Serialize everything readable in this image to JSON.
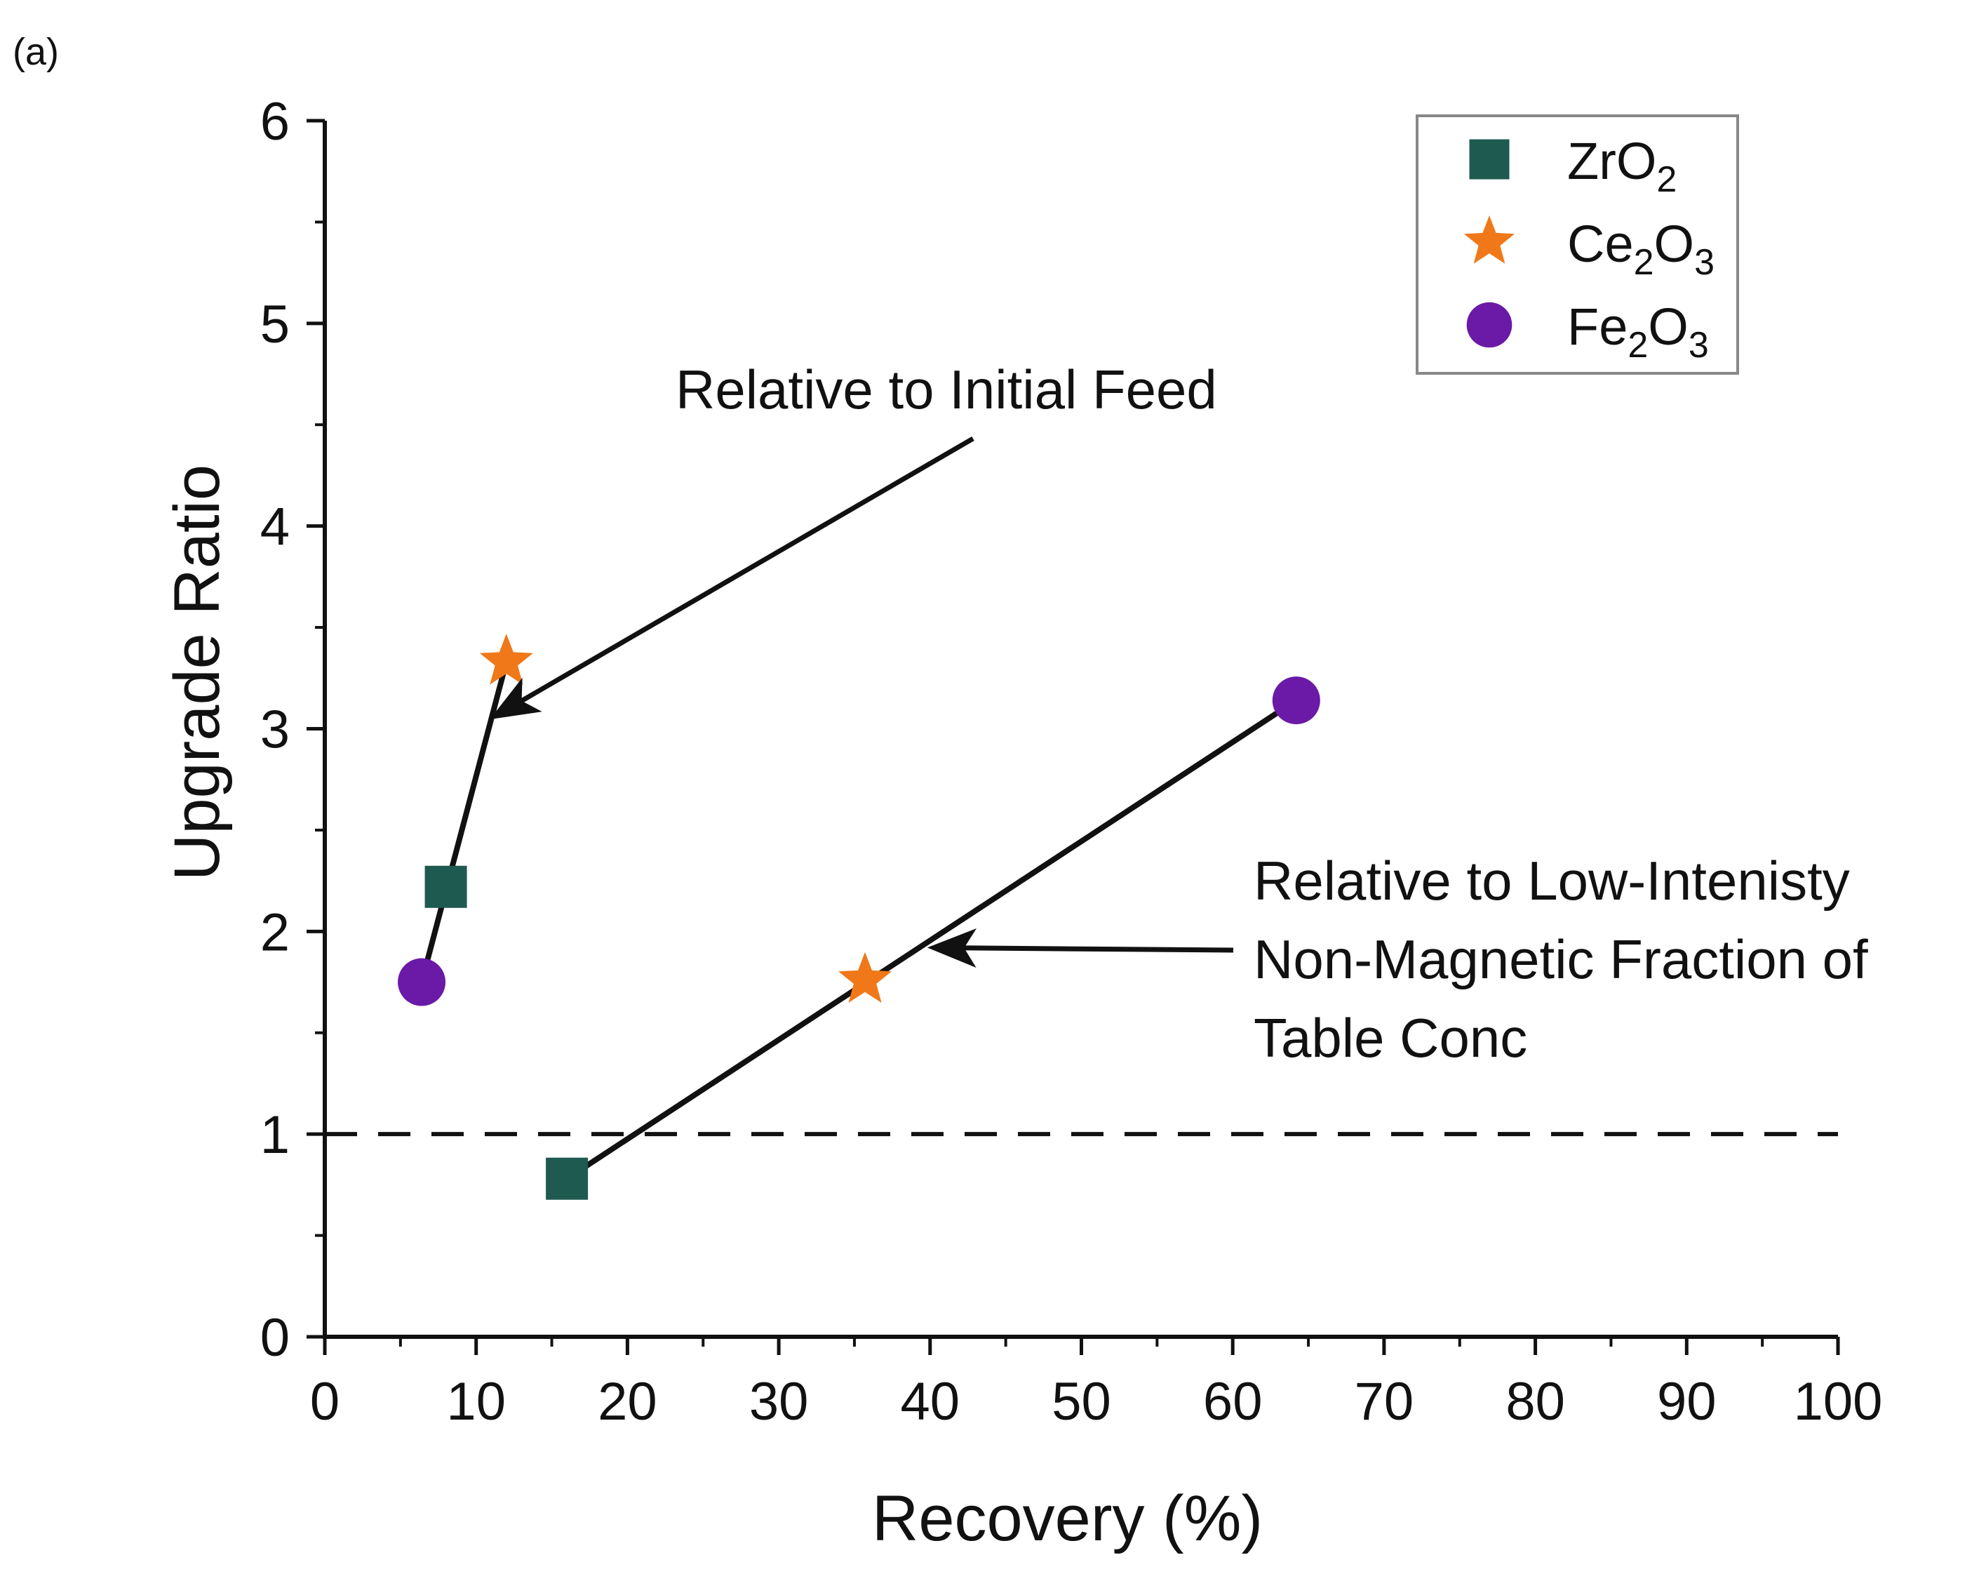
{
  "panel_label": "(a)",
  "colors": {
    "ZrO2": "#1f5a50",
    "Ce2O3": "#f07818",
    "Fe2O3": "#6a1aa6",
    "axis": "#111111"
  },
  "legend": {
    "items": [
      {
        "key": "ZrO2",
        "base1": "ZrO",
        "sub1": "2",
        "base2": "",
        "sub2": "",
        "marker": "square"
      },
      {
        "key": "Ce2O3",
        "base1": "Ce",
        "sub1": "2",
        "base2": "O",
        "sub2": "3",
        "marker": "star"
      },
      {
        "key": "Fe2O3",
        "base1": "Fe",
        "sub1": "2",
        "base2": "O",
        "sub2": "3",
        "marker": "circle"
      }
    ]
  },
  "annotations": {
    "initial_feed": "Relative to Initial Feed",
    "low_intensity": [
      "Relative to Low-Intenisty",
      "Non-Magnetic Fraction of",
      "Table Conc"
    ]
  },
  "chart_data": {
    "type": "scatter",
    "title": "",
    "xlabel": "Recovery (%)",
    "ylabel": "Upgrade Ratio",
    "xlim": [
      0,
      100
    ],
    "ylim": [
      0,
      6
    ],
    "xticks": [
      0,
      10,
      20,
      30,
      40,
      50,
      60,
      70,
      80,
      90,
      100
    ],
    "yticks": [
      0,
      1,
      2,
      3,
      4,
      5,
      6
    ],
    "reference_line": {
      "y": 1,
      "style": "dashed"
    },
    "series": [
      {
        "name": "ZrO2",
        "marker": "square",
        "points": [
          {
            "x": 8,
            "y": 2.22
          },
          {
            "x": 16,
            "y": 0.78
          }
        ]
      },
      {
        "name": "Ce2O3",
        "marker": "star",
        "points": [
          {
            "x": 12,
            "y": 3.33
          },
          {
            "x": 35.7,
            "y": 1.76
          }
        ]
      },
      {
        "name": "Fe2O3",
        "marker": "circle",
        "points": [
          {
            "x": 6.4,
            "y": 1.75
          },
          {
            "x": 64.2,
            "y": 3.14
          }
        ]
      }
    ],
    "trend_lines": [
      {
        "group": "Relative to Initial Feed",
        "from": {
          "x": 6.4,
          "y": 1.75
        },
        "to": {
          "x": 12,
          "y": 3.33
        }
      },
      {
        "group": "Relative to Low-Intenisty Non-Magnetic Fraction of Table Conc",
        "from": {
          "x": 16,
          "y": 0.78
        },
        "to": {
          "x": 64.2,
          "y": 3.14
        }
      }
    ],
    "arrows": [
      {
        "label_group": "initial_feed",
        "head": {
          "x": 11,
          "y": 3.05
        }
      },
      {
        "label_group": "low_intensity",
        "head": {
          "x": 40,
          "y": 1.93
        }
      }
    ],
    "legend_position": "top-right"
  }
}
